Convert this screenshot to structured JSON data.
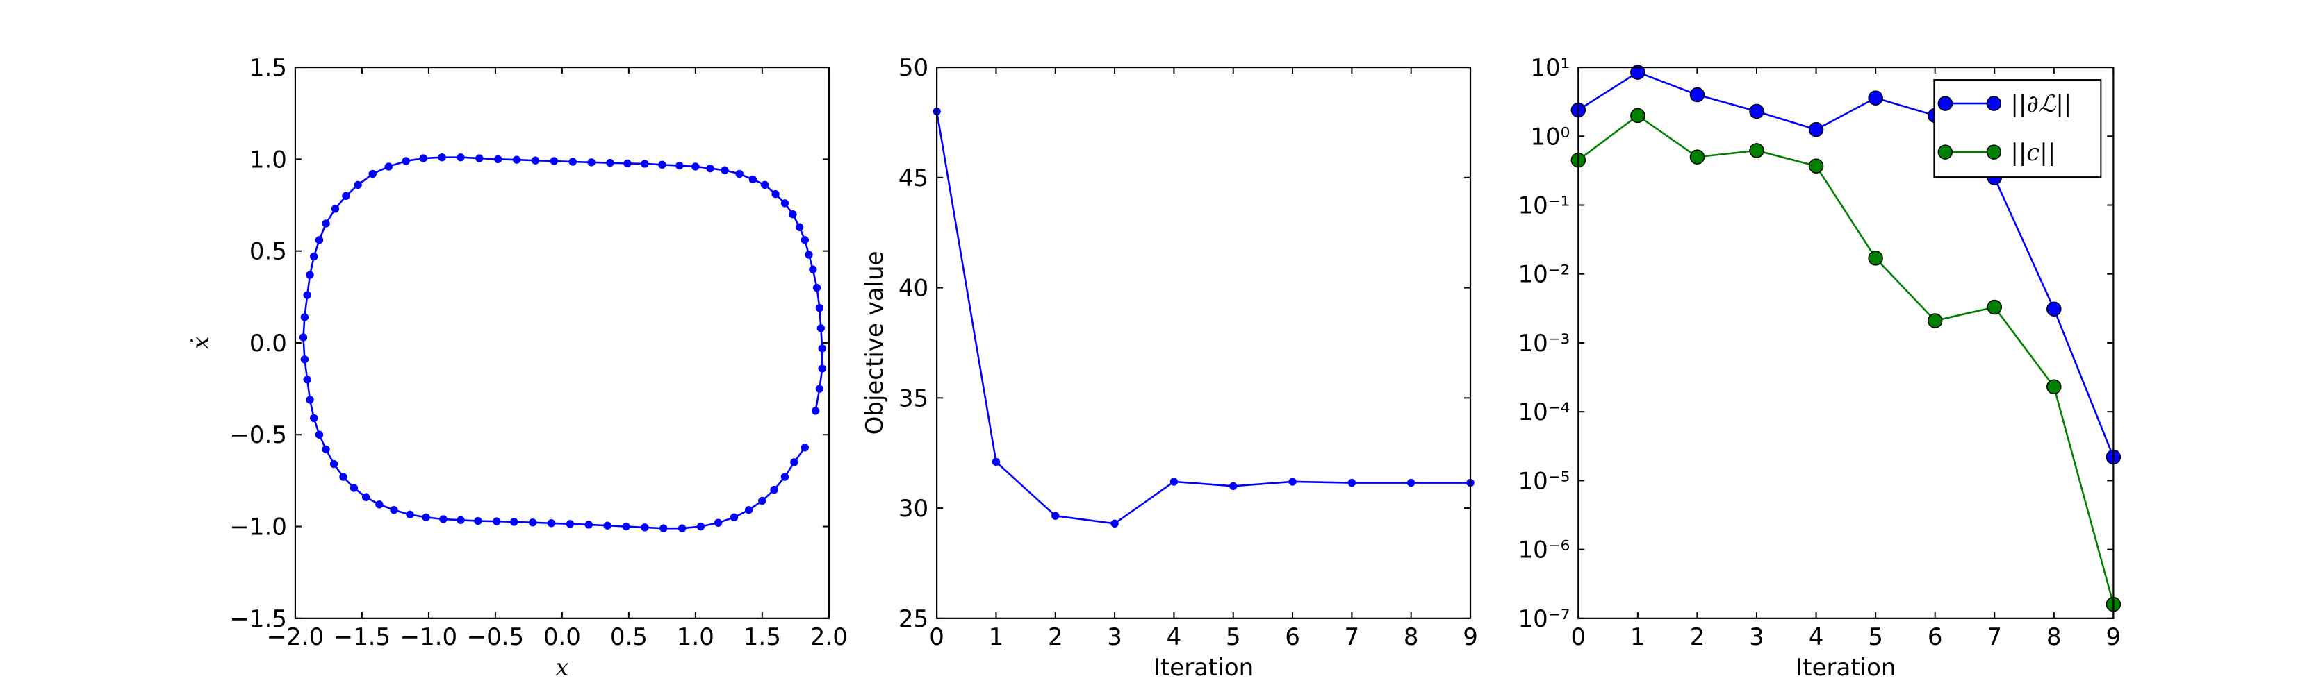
{
  "chart_data": [
    {
      "type": "line",
      "xlabel": "x",
      "ylabel": "ẋ",
      "xlim": [
        -2.0,
        2.0
      ],
      "ylim": [
        -1.5,
        1.5
      ],
      "xticks": [
        {
          "value": -2.0,
          "label": "−2.0"
        },
        {
          "value": -1.5,
          "label": "−1.5"
        },
        {
          "value": -1.0,
          "label": "−1.0"
        },
        {
          "value": -0.5,
          "label": "−0.5"
        },
        {
          "value": 0.0,
          "label": "0.0"
        },
        {
          "value": 0.5,
          "label": "0.5"
        },
        {
          "value": 1.0,
          "label": "1.0"
        },
        {
          "value": 1.5,
          "label": "1.5"
        },
        {
          "value": 2.0,
          "label": "2.0"
        }
      ],
      "yticks": [
        {
          "value": -1.5,
          "label": "−1.5"
        },
        {
          "value": -1.0,
          "label": "−1.0"
        },
        {
          "value": -0.5,
          "label": "−0.5"
        },
        {
          "value": 0.0,
          "label": "0.0"
        },
        {
          "value": 0.5,
          "label": "0.5"
        },
        {
          "value": 1.0,
          "label": "1.0"
        },
        {
          "value": 1.5,
          "label": "1.5"
        }
      ],
      "x": [
        1.9,
        1.93,
        1.95,
        1.95,
        1.94,
        1.93,
        1.91,
        1.88,
        1.85,
        1.82,
        1.78,
        1.73,
        1.67,
        1.6,
        1.52,
        1.43,
        1.33,
        1.22,
        1.11,
        1.0,
        0.88,
        0.75,
        0.62,
        0.49,
        0.36,
        0.22,
        0.08,
        -0.06,
        -0.2,
        -0.34,
        -0.48,
        -0.62,
        -0.76,
        -0.9,
        -1.04,
        -1.17,
        -1.3,
        -1.42,
        -1.53,
        -1.62,
        -1.7,
        -1.77,
        -1.82,
        -1.86,
        -1.89,
        -1.91,
        -1.93,
        -1.94,
        -1.93,
        -1.91,
        -1.89,
        -1.86,
        -1.82,
        -1.77,
        -1.71,
        -1.64,
        -1.56,
        -1.47,
        -1.37,
        -1.26,
        -1.14,
        -1.02,
        -0.89,
        -0.76,
        -0.63,
        -0.49,
        -0.36,
        -0.22,
        -0.08,
        0.06,
        0.2,
        0.34,
        0.48,
        0.62,
        0.76,
        0.9,
        1.04,
        1.17,
        1.29,
        1.4,
        1.5,
        1.59,
        1.67,
        1.74,
        1.82
      ],
      "series": [
        {
          "color": "#0000ff",
          "values": [
            -0.37,
            -0.25,
            -0.14,
            -0.03,
            0.08,
            0.19,
            0.3,
            0.4,
            0.48,
            0.56,
            0.63,
            0.7,
            0.76,
            0.81,
            0.86,
            0.89,
            0.92,
            0.94,
            0.95,
            0.96,
            0.965,
            0.97,
            0.975,
            0.977,
            0.98,
            0.983,
            0.986,
            0.99,
            0.993,
            0.997,
            1.0,
            1.005,
            1.01,
            1.01,
            1.005,
            0.99,
            0.96,
            0.92,
            0.86,
            0.8,
            0.73,
            0.65,
            0.56,
            0.47,
            0.37,
            0.26,
            0.14,
            0.03,
            -0.09,
            -0.2,
            -0.31,
            -0.41,
            -0.5,
            -0.58,
            -0.66,
            -0.73,
            -0.79,
            -0.84,
            -0.88,
            -0.91,
            -0.935,
            -0.95,
            -0.96,
            -0.965,
            -0.97,
            -0.972,
            -0.975,
            -0.978,
            -0.982,
            -0.986,
            -0.99,
            -0.995,
            -1.0,
            -1.005,
            -1.01,
            -1.01,
            -1.0,
            -0.98,
            -0.95,
            -0.91,
            -0.86,
            -0.8,
            -0.73,
            -0.65,
            -0.57
          ]
        }
      ]
    },
    {
      "type": "line",
      "xlabel": "Iteration",
      "ylabel": "Objective value",
      "xlim": [
        0,
        9
      ],
      "ylim": [
        25,
        50
      ],
      "xticks": [
        0,
        1,
        2,
        3,
        4,
        5,
        6,
        7,
        8,
        9
      ],
      "yticks": [
        25,
        30,
        35,
        40,
        45,
        50
      ],
      "x": [
        0,
        1,
        2,
        3,
        4,
        5,
        6,
        7,
        8,
        9
      ],
      "series": [
        {
          "color": "#0000ff",
          "values": [
            48.0,
            32.1,
            29.65,
            29.3,
            31.2,
            31.0,
            31.2,
            31.15,
            31.15,
            31.15
          ]
        }
      ]
    },
    {
      "type": "line",
      "xlabel": "Iteration",
      "log_scale_y": true,
      "legend": "upper right",
      "xlim": [
        0,
        9
      ],
      "ylim": [
        1e-07,
        10
      ],
      "xticks": [
        0,
        1,
        2,
        3,
        4,
        5,
        6,
        7,
        8,
        9
      ],
      "yticks": [
        {
          "value": 1e-07,
          "label": "10⁻⁷"
        },
        {
          "value": 1e-06,
          "label": "10⁻⁶"
        },
        {
          "value": 1e-05,
          "label": "10⁻⁵"
        },
        {
          "value": 0.0001,
          "label": "10⁻⁴"
        },
        {
          "value": 0.001,
          "label": "10⁻³"
        },
        {
          "value": 0.01,
          "label": "10⁻²"
        },
        {
          "value": 0.1,
          "label": "10⁻¹"
        },
        {
          "value": 1,
          "label": "10⁰"
        },
        {
          "value": 10,
          "label": "10¹"
        }
      ],
      "x": [
        0,
        1,
        2,
        3,
        4,
        5,
        6,
        7,
        8,
        9
      ],
      "series": [
        {
          "name": "||∂ℒ||",
          "color": "#0000ff",
          "values": [
            2.4,
            8.5,
            4.0,
            2.3,
            1.25,
            3.6,
            2.0,
            0.25,
            0.0031,
            2.2e-05
          ]
        },
        {
          "name": "||c||",
          "color": "#008000",
          "values": [
            0.45,
            2.0,
            0.5,
            0.62,
            0.37,
            0.017,
            0.0021,
            0.0033,
            0.00023,
            1.6e-07
          ]
        }
      ]
    }
  ]
}
